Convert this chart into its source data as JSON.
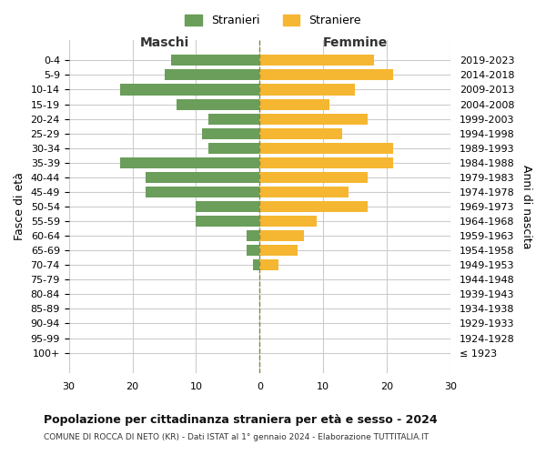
{
  "age_groups": [
    "100+",
    "95-99",
    "90-94",
    "85-89",
    "80-84",
    "75-79",
    "70-74",
    "65-69",
    "60-64",
    "55-59",
    "50-54",
    "45-49",
    "40-44",
    "35-39",
    "30-34",
    "25-29",
    "20-24",
    "15-19",
    "10-14",
    "5-9",
    "0-4"
  ],
  "birth_years": [
    "≤ 1923",
    "1924-1928",
    "1929-1933",
    "1934-1938",
    "1939-1943",
    "1944-1948",
    "1949-1953",
    "1954-1958",
    "1959-1963",
    "1964-1968",
    "1969-1973",
    "1974-1978",
    "1979-1983",
    "1984-1988",
    "1989-1993",
    "1994-1998",
    "1999-2003",
    "2004-2008",
    "2009-2013",
    "2014-2018",
    "2019-2023"
  ],
  "maschi": [
    0,
    0,
    0,
    0,
    0,
    0,
    1,
    2,
    2,
    10,
    10,
    18,
    18,
    22,
    8,
    9,
    8,
    13,
    22,
    15,
    14
  ],
  "femmine": [
    0,
    0,
    0,
    0,
    0,
    0,
    3,
    6,
    7,
    9,
    17,
    14,
    17,
    21,
    21,
    13,
    17,
    11,
    15,
    21,
    18
  ],
  "maschi_color": "#6a9e5a",
  "femmine_color": "#f5b731",
  "background_color": "#ffffff",
  "grid_color": "#cccccc",
  "dashed_line_color": "#888844",
  "title": "Popolazione per cittadinanza straniera per età e sesso - 2024",
  "subtitle": "COMUNE DI ROCCA DI NETO (KR) - Dati ISTAT al 1° gennaio 2024 - Elaborazione TUTTITALIA.IT",
  "ylabel_left": "Fasce di età",
  "ylabel_right": "Anni di nascita",
  "legend_stranieri": "Stranieri",
  "legend_straniere": "Straniere",
  "maschi_label": "Maschi",
  "femmine_label": "Femmine",
  "xlim": 30,
  "xticks": [
    -30,
    -20,
    -10,
    0,
    10,
    20,
    30
  ]
}
